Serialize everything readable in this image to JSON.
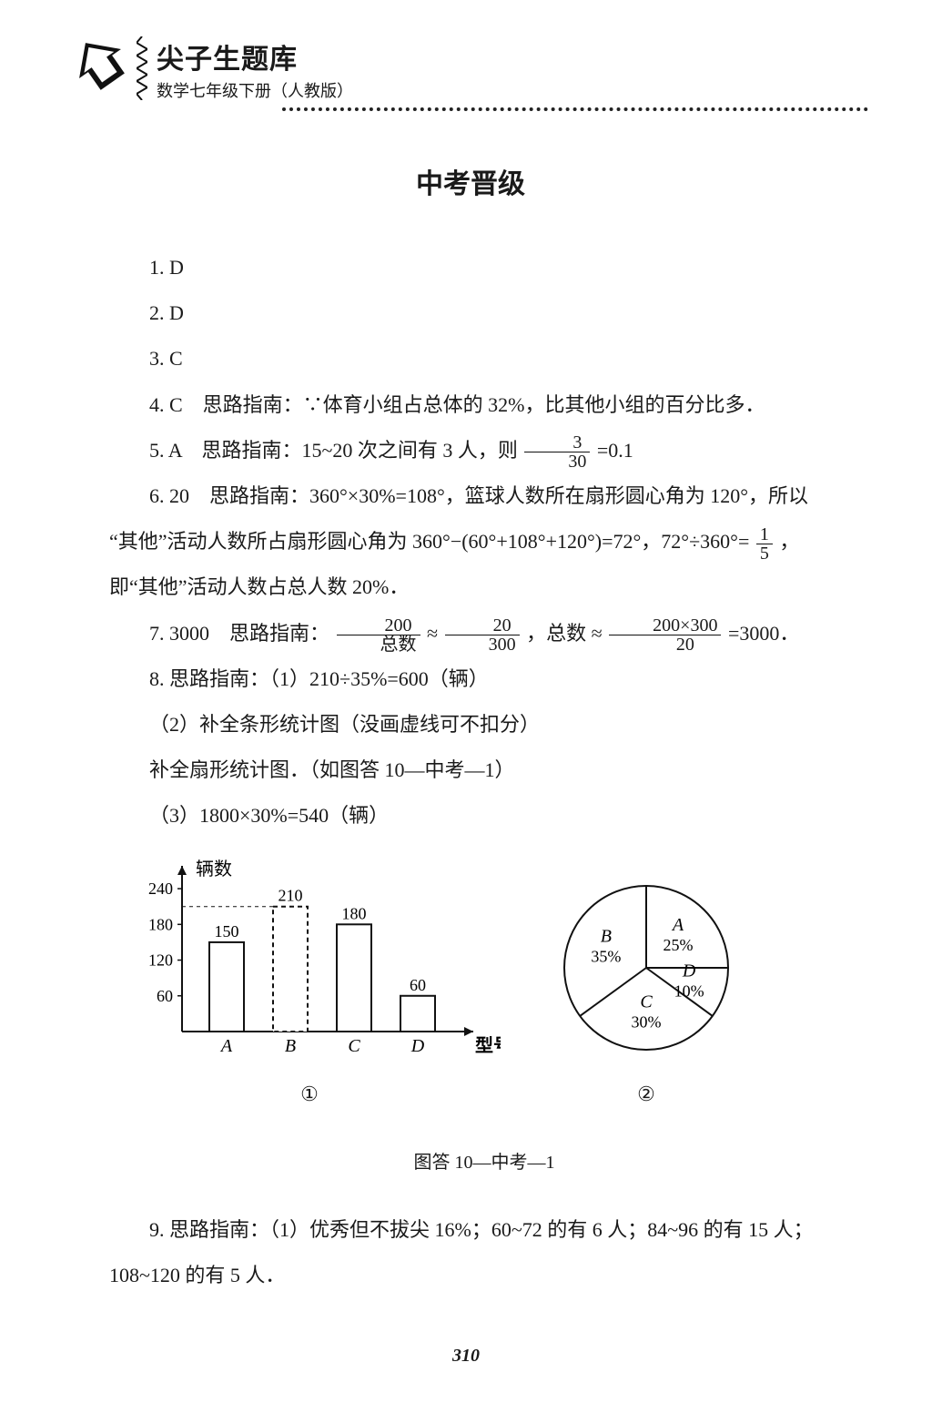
{
  "header": {
    "series_title": "尖子生题库",
    "series_sub": "数学七年级下册（人教版）"
  },
  "section_title": "中考晋级",
  "answers": {
    "a1": "1. D",
    "a2": "2. D",
    "a3": "3. C",
    "a4": "4. C　思路指南：∵体育小组占总体的 32%，比其他小组的百分比多．",
    "a5_pre": "5. A　思路指南：15~20 次之间有 3 人，则",
    "a5_frac_num": "3",
    "a5_frac_den": "30",
    "a5_post": "=0.1",
    "a6_line1": "6. 20　思路指南：360°×30%=108°，篮球人数所在扇形圆心角为 120°，所以",
    "a6_line2_pre": "“其他”活动人数所占扇形圆心角为 360°−(60°+108°+120°)=72°，72°÷360°=",
    "a6_frac_num": "1",
    "a6_frac_den": "5",
    "a6_line2_post": "，",
    "a6_line3": "即“其他”活动人数占总人数 20%．",
    "a7_pre": "7. 3000　思路指南：",
    "a7_f1_num": "200",
    "a7_f1_den": "总数",
    "a7_mid1": " ≈ ",
    "a7_f2_num": "20",
    "a7_f2_den": "300",
    "a7_mid2": "，总数 ≈ ",
    "a7_f3_num": "200×300",
    "a7_f3_den": "20",
    "a7_post": "=3000．",
    "a8_1": "8. 思路指南：（1）210÷35%=600（辆）",
    "a8_2": "（2）补全条形统计图（没画虚线可不扣分）",
    "a8_3": "补全扇形统计图．（如图答 10—中考—1）",
    "a8_4": "（3）1800×30%=540（辆）",
    "a9_1": "9. 思路指南：（1）优秀但不拔尖 16%；60~72 的有 6 人；84~96 的有 15 人；",
    "a9_2": "108~120 的有 5 人．"
  },
  "bar_chart": {
    "y_label": "辆数",
    "x_label": "型号",
    "y_ticks": [
      60,
      120,
      180,
      240
    ],
    "categories": [
      "A",
      "B",
      "C",
      "D"
    ],
    "values": [
      150,
      210,
      180,
      60
    ],
    "value_labels": [
      "150",
      "210",
      "180",
      "60"
    ],
    "bar_color": "#ffffff",
    "bar_border": "#111111",
    "axis_color": "#111111",
    "b_dashed": true,
    "caption": "①"
  },
  "pie_chart": {
    "slices": [
      {
        "label": "A",
        "pct": "25%",
        "value": 25
      },
      {
        "label": "D",
        "pct": "10%",
        "value": 10
      },
      {
        "label": "C",
        "pct": "30%",
        "value": 30
      },
      {
        "label": "B",
        "pct": "35%",
        "value": 35
      }
    ],
    "border": "#111111",
    "fill": "#ffffff",
    "caption": "②"
  },
  "figure_caption": "图答 10—中考—1",
  "page_number": "310"
}
